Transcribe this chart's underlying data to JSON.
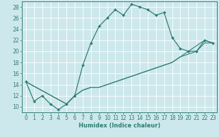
{
  "xlabel": "Humidex (Indice chaleur)",
  "xlim": [
    -0.5,
    23.5
  ],
  "ylim": [
    9,
    29
  ],
  "yticks": [
    10,
    12,
    14,
    16,
    18,
    20,
    22,
    24,
    26,
    28
  ],
  "xticks": [
    0,
    1,
    2,
    3,
    4,
    5,
    6,
    7,
    8,
    9,
    10,
    11,
    12,
    13,
    14,
    15,
    16,
    17,
    18,
    19,
    20,
    21,
    22,
    23
  ],
  "bg_color": "#cde8ec",
  "grid_color": "#ffffff",
  "line_color": "#2e7d72",
  "lines": [
    {
      "x": [
        0,
        1,
        2,
        3,
        4,
        5,
        6,
        7,
        8,
        9,
        10,
        11,
        12,
        13,
        14,
        15,
        16,
        17,
        18,
        19,
        20,
        21,
        22,
        23
      ],
      "y": [
        14.5,
        11,
        12,
        10.5,
        9.5,
        10.5,
        12,
        17.5,
        21.5,
        24.5,
        26,
        27.5,
        26.5,
        28.5,
        28,
        27.5,
        26.5,
        27,
        22.5,
        20.5,
        20,
        20,
        22,
        21.5
      ],
      "marker": true
    },
    {
      "x": [
        0,
        5,
        6,
        7,
        8,
        9,
        10,
        11,
        12,
        13,
        14,
        15,
        16,
        17,
        18,
        19,
        20,
        21,
        22,
        23
      ],
      "y": [
        14.5,
        10.5,
        12,
        13,
        13.5,
        13.5,
        14,
        14.5,
        15,
        15.5,
        16,
        16.5,
        17,
        17.5,
        18,
        19,
        20,
        21,
        22,
        21.5
      ],
      "marker": false
    },
    {
      "x": [
        0,
        5,
        6,
        7,
        8,
        9,
        10,
        11,
        12,
        13,
        14,
        15,
        16,
        17,
        18,
        19,
        20,
        21,
        22,
        23
      ],
      "y": [
        14.5,
        10.5,
        12,
        13,
        13.5,
        13.5,
        14,
        14.5,
        15,
        15.5,
        16,
        16.5,
        17,
        17.5,
        18,
        19,
        19.5,
        20,
        21.5,
        21.5
      ],
      "marker": false
    }
  ]
}
